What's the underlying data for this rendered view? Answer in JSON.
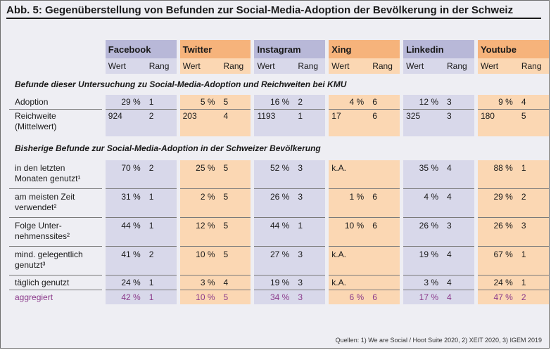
{
  "title": "Abb. 5: Gegenüberstellung von Befunden zur Social-Media-Adoption der Bevölkerung in der Schweiz",
  "platforms": [
    "Facebook",
    "Twitter",
    "Instagram",
    "Xing",
    "Linkedin",
    "Youtube"
  ],
  "sub_headers": {
    "value": "Wert",
    "rank": "Rang"
  },
  "section1": {
    "heading": "Befunde dieser Untersuchung zu Social-Media-Adoption und Reichweiten bei KMU",
    "rows": [
      {
        "label": "Adoption",
        "cells": [
          "29 %",
          "1",
          "5 %",
          "5",
          "16 %",
          "2",
          "4 %",
          "6",
          "12 %",
          "3",
          "9 %",
          "4"
        ]
      },
      {
        "label": "Reichweite (Mittelwert)",
        "cells": [
          "924",
          "2",
          "203",
          "4",
          "1193",
          "1",
          "17",
          "6",
          "325",
          "3",
          "180",
          "5"
        ]
      }
    ]
  },
  "section2": {
    "heading": "Bisherige Befunde zur Social-Media-Adoption in der Schweizer Bevölkerung",
    "rows": [
      {
        "label": "in den letzten Monaten genutzt¹",
        "cells": [
          "70 %",
          "2",
          "25 %",
          "5",
          "52 %",
          "3",
          "k.A.",
          "",
          "35 %",
          "4",
          "88 %",
          "1"
        ]
      },
      {
        "label": "am meisten Zeit verwendet²",
        "cells": [
          "31 %",
          "1",
          "2 %",
          "5",
          "26 %",
          "3",
          "1 %",
          "6",
          "4 %",
          "4",
          "29 %",
          "2"
        ]
      },
      {
        "label": "Folge Unter-nehmenssites²",
        "cells": [
          "44 %",
          "1",
          "12 %",
          "5",
          "44 %",
          "1",
          "10 %",
          "6",
          "26 %",
          "3",
          "26 %",
          "3"
        ]
      },
      {
        "label": "mind. gelegentlich genutzt³",
        "cells": [
          "41 %",
          "2",
          "10 %",
          "5",
          "27 %",
          "3",
          "k.A.",
          "",
          "19 %",
          "4",
          "67 %",
          "1"
        ]
      },
      {
        "label": "täglich genutzt",
        "cells": [
          "24 %",
          "1",
          "3 %",
          "4",
          "19 %",
          "3",
          "k.A.",
          "",
          "3 %",
          "4",
          "24 %",
          "1"
        ]
      },
      {
        "label": "aggregiert",
        "cells": [
          "42 %",
          "1",
          "10 %",
          "5",
          "34 %",
          "3",
          "6 %",
          "6",
          "17 %",
          "4",
          "47 %",
          "2"
        ]
      }
    ]
  },
  "source": "Quellen: 1) We are Social / Hoot Suite 2020, 2) XEIT 2020, 3) IGEM 2019"
}
